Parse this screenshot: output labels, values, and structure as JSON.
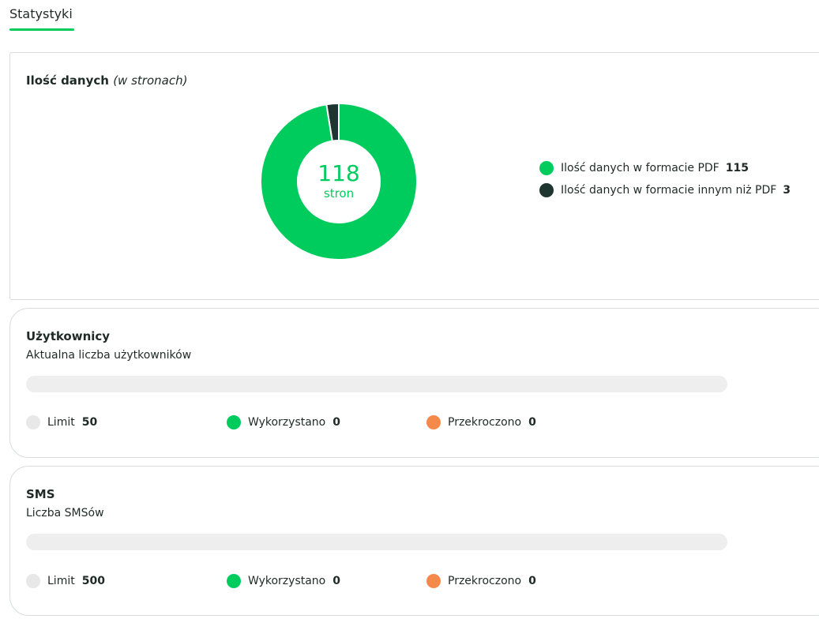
{
  "tabs": [
    {
      "label": "Statystyki",
      "active": true
    }
  ],
  "data_card": {
    "title": "Ilość danych",
    "title_note": "(w stronach)",
    "total_value": "118",
    "total_unit": "stron",
    "colors": {
      "pdf": "#00cc5e",
      "other": "#1e3530"
    },
    "legend": [
      {
        "label": "Ilość danych w formacie PDF",
        "value": "115"
      },
      {
        "label": "Ilość danych w formacie innym niż PDF",
        "value": "3"
      }
    ]
  },
  "chart_data": {
    "type": "pie",
    "categories": [
      "Ilość danych w formacie PDF",
      "Ilość danych w formacie innym niż PDF"
    ],
    "values": [
      115,
      3
    ],
    "title": "Ilość danych (w stronach)"
  },
  "users_card": {
    "title": "Użytkownicy",
    "subtitle": "Aktualna liczba użytkowników",
    "progress": 0,
    "limit_label": "Limit",
    "limit_value": "50",
    "used_label": "Wykorzystano",
    "used_value": "0",
    "exceeded_label": "Przekroczono",
    "exceeded_value": "0"
  },
  "sms_card": {
    "title": "SMS",
    "subtitle": "Liczba SMSów",
    "progress": 0,
    "limit_label": "Limit",
    "limit_value": "500",
    "used_label": "Wykorzystano",
    "used_value": "0",
    "exceeded_label": "Przekroczono",
    "exceeded_value": "0"
  },
  "status_colors": {
    "limit": "#e8e8e8",
    "used": "#00cc5e",
    "exceeded": "#f5894a"
  }
}
